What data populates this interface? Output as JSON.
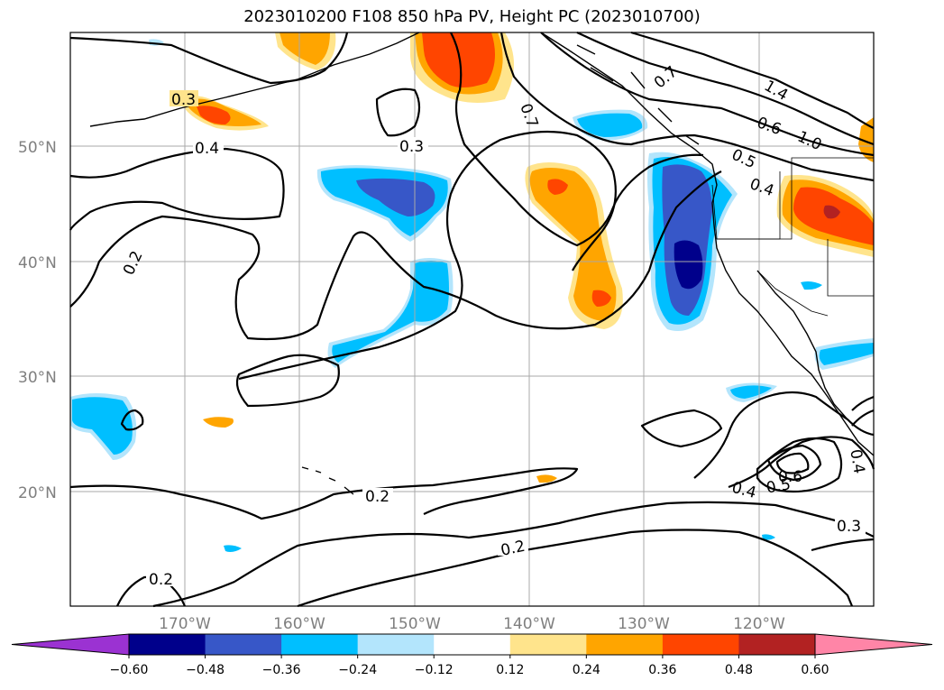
{
  "title": "2023010200 F108 850 hPa PV, Height PC (2023010700)",
  "axes": {
    "lat_labels": [
      "50°N",
      "40°N",
      "30°N",
      "20°N"
    ],
    "lon_labels": [
      "170°W",
      "160°W",
      "150°W",
      "140°W",
      "130°W",
      "120°W"
    ]
  },
  "contour_labels": [
    "0.3",
    "0.4",
    "0.3",
    "0.2",
    "0.7",
    "0.7",
    "1.4",
    "0.6",
    "1.0",
    "0.5",
    "0.4",
    "0.2",
    "0.2",
    "0.2",
    "0.4",
    "0.5",
    "0.6",
    "0.4",
    "0.3"
  ],
  "colorbar": {
    "ticks": [
      "−0.60",
      "−0.48",
      "−0.36",
      "−0.24",
      "−0.12",
      "0.12",
      "0.24",
      "0.36",
      "0.48",
      "0.60"
    ],
    "colors": [
      "#9b32d2",
      "#00008b",
      "#3757c8",
      "#00bfff",
      "#b3e5fc",
      "#ffffff",
      "#ffe48c",
      "#ffa500",
      "#ff4500",
      "#b22222",
      "#ff85a7"
    ]
  }
}
